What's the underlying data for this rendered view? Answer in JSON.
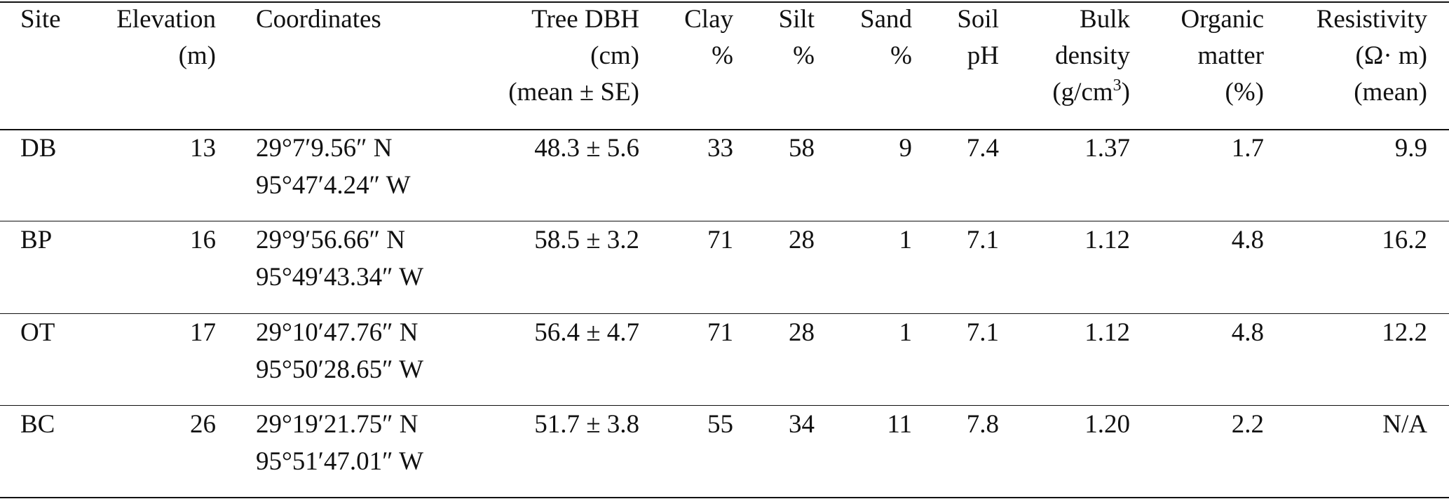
{
  "table": {
    "header": [
      [
        "Site"
      ],
      [
        "Elevation",
        "(m)"
      ],
      [
        "Coordinates"
      ],
      [
        "Tree DBH",
        "(cm)",
        "(mean ± SE)"
      ],
      [
        "Clay",
        "%"
      ],
      [
        "Silt",
        "%"
      ],
      [
        "Sand",
        "%"
      ],
      [
        "Soil",
        "pH"
      ],
      [
        "Bulk",
        "density",
        [
          "(g/cm",
          "3",
          ")"
        ]
      ],
      [
        "Organic",
        "matter",
        "(%)"
      ],
      [
        "Resistivity",
        "(Ω· m)",
        "(mean)"
      ]
    ],
    "rows": [
      [
        "DB",
        "13",
        [
          "29°7′9.56″ N",
          "95°47′4.24″ W"
        ],
        "48.3 ± 5.6",
        "33",
        "58",
        "9",
        "7.4",
        "1.37",
        "1.7",
        "9.9"
      ],
      [
        "BP",
        "16",
        [
          "29°9′56.66″ N",
          "95°49′43.34″ W"
        ],
        "58.5 ± 3.2",
        "71",
        "28",
        "1",
        "7.1",
        "1.12",
        "4.8",
        "16.2"
      ],
      [
        "OT",
        "17",
        [
          "29°10′47.76″ N",
          "95°50′28.65″ W"
        ],
        "56.4 ± 4.7",
        "71",
        "28",
        "1",
        "7.1",
        "1.12",
        "4.8",
        "12.2"
      ],
      [
        "BC",
        "26",
        [
          "29°19′21.75″ N",
          "95°51′47.01″ W"
        ],
        "51.7 ± 3.8",
        "55",
        "34",
        "11",
        "7.8",
        "1.20",
        "2.2",
        "N/A"
      ]
    ]
  }
}
